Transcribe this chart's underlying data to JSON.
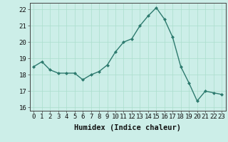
{
  "x": [
    0,
    1,
    2,
    3,
    4,
    5,
    6,
    7,
    8,
    9,
    10,
    11,
    12,
    13,
    14,
    15,
    16,
    17,
    18,
    19,
    20,
    21,
    22,
    23
  ],
  "y": [
    18.5,
    18.8,
    18.3,
    18.1,
    18.1,
    18.1,
    17.7,
    18.0,
    18.2,
    18.6,
    19.4,
    20.0,
    20.2,
    21.0,
    21.6,
    22.1,
    21.4,
    20.3,
    18.5,
    17.5,
    16.4,
    17.0,
    16.9,
    16.8
  ],
  "line_color": "#2d7a6e",
  "marker": "D",
  "markersize": 2.0,
  "linewidth": 1.0,
  "bg_color": "#cceee8",
  "grid_color": "#aaddcc",
  "xlabel": "Humidex (Indice chaleur)",
  "xlim": [
    -0.5,
    23.5
  ],
  "ylim": [
    15.8,
    22.4
  ],
  "yticks": [
    16,
    17,
    18,
    19,
    20,
    21,
    22
  ],
  "xticks": [
    0,
    1,
    2,
    3,
    4,
    5,
    6,
    7,
    8,
    9,
    10,
    11,
    12,
    13,
    14,
    15,
    16,
    17,
    18,
    19,
    20,
    21,
    22,
    23
  ],
  "xlabel_fontsize": 7.5,
  "tick_fontsize": 6.5
}
